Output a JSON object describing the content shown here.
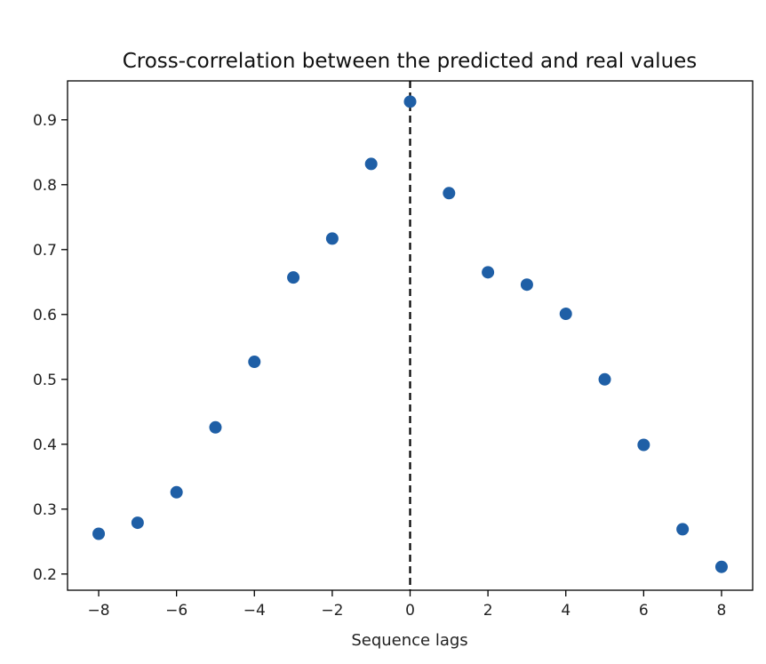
{
  "chart_data": {
    "type": "scatter",
    "title": "Cross-correlation between the predicted and real values",
    "xlabel": "Sequence lags",
    "ylabel": "",
    "xlim": [
      -8.8,
      8.8
    ],
    "ylim": [
      0.175,
      0.96
    ],
    "x_ticks": [
      -8,
      -6,
      -4,
      -2,
      0,
      2,
      4,
      6,
      8
    ],
    "x_tick_labels": [
      "−8",
      "−6",
      "−4",
      "−2",
      "0",
      "2",
      "4",
      "6",
      "8"
    ],
    "y_ticks": [
      0.2,
      0.3,
      0.4,
      0.5,
      0.6,
      0.7,
      0.8,
      0.9
    ],
    "y_tick_labels": [
      "0.2",
      "0.3",
      "0.4",
      "0.5",
      "0.6",
      "0.7",
      "0.8",
      "0.9"
    ],
    "grid": false,
    "vline": {
      "x": 0,
      "style": "dashed",
      "color": "#000000"
    },
    "marker_color": "#1f5fa6",
    "series": [
      {
        "x": [
          -8,
          -7,
          -6,
          -5,
          -4,
          -3,
          -2,
          -1,
          0,
          1,
          2,
          3,
          4,
          5,
          6,
          7,
          8
        ],
        "y": [
          0.262,
          0.279,
          0.326,
          0.426,
          0.527,
          0.657,
          0.717,
          0.832,
          0.928,
          0.787,
          0.665,
          0.646,
          0.601,
          0.5,
          0.399,
          0.269,
          0.211
        ]
      }
    ]
  }
}
